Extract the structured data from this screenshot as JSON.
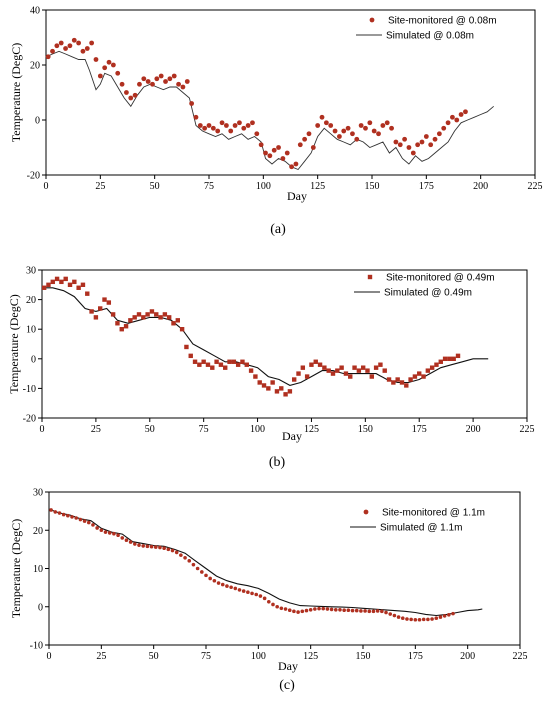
{
  "chart_data": [
    {
      "type": "scatter",
      "panel_label": "(a)",
      "xlabel": "Day",
      "ylabel": "Temperature (DegC)",
      "xlim": [
        0,
        225
      ],
      "ylim": [
        -20,
        40
      ],
      "xticks": [
        0,
        25,
        50,
        75,
        100,
        125,
        150,
        175,
        200,
        225
      ],
      "yticks": [
        -20,
        0,
        20,
        40
      ],
      "legend_position": "top-right",
      "colors": {
        "observed": "#b03020",
        "simulated": "#333333"
      },
      "series": [
        {
          "name": "Site-monitored @ 0.08m",
          "kind": "points",
          "x": [
            1,
            3,
            5,
            7,
            9,
            11,
            13,
            15,
            17,
            19,
            21,
            23,
            25,
            27,
            29,
            31,
            33,
            35,
            37,
            39,
            41,
            43,
            45,
            47,
            49,
            51,
            53,
            55,
            57,
            59,
            61,
            63,
            65,
            67,
            69,
            71,
            73,
            75,
            77,
            79,
            81,
            83,
            85,
            87,
            89,
            91,
            93,
            95,
            97,
            99,
            101,
            103,
            105,
            107,
            109,
            111,
            113,
            115,
            117,
            119,
            121,
            123,
            125,
            127,
            129,
            131,
            133,
            135,
            137,
            139,
            141,
            143,
            145,
            147,
            149,
            151,
            153,
            155,
            157,
            159,
            161,
            163,
            165,
            167,
            169,
            171,
            173,
            175,
            177,
            179,
            181,
            183,
            185,
            187,
            189,
            191,
            193
          ],
          "y": [
            23,
            25,
            27,
            28,
            26,
            27,
            29,
            28,
            25,
            26,
            28,
            22,
            16,
            19,
            21,
            20,
            17,
            13,
            10,
            8,
            9,
            13,
            15,
            14,
            13,
            15,
            16,
            14,
            15,
            16,
            13,
            12,
            14,
            6,
            1,
            -2,
            -3,
            -2,
            -3,
            -4,
            -1,
            -2,
            -4,
            -2,
            -1,
            -3,
            -2,
            -1,
            -5,
            -9,
            -12,
            -13,
            -11,
            -10,
            -14,
            -12,
            -17,
            -16,
            -9,
            -7,
            -5,
            -10,
            -2,
            1,
            -1,
            -2,
            -4,
            -6,
            -4,
            -3,
            -5,
            -7,
            -2,
            -3,
            -1,
            -4,
            -5,
            -2,
            -1,
            -3,
            -8,
            -9,
            -7,
            -10,
            -12,
            -9,
            -8,
            -6,
            -9,
            -7,
            -5,
            -3,
            -1,
            1,
            0,
            2,
            3
          ]
        },
        {
          "name": "Simulated @ 0.08m",
          "kind": "line",
          "x": [
            0,
            3,
            6,
            9,
            12,
            15,
            18,
            20,
            23,
            25,
            27,
            30,
            33,
            36,
            39,
            42,
            45,
            48,
            51,
            54,
            57,
            60,
            63,
            66,
            69,
            72,
            75,
            78,
            81,
            84,
            87,
            90,
            93,
            96,
            99,
            101,
            104,
            107,
            110,
            113,
            116,
            119,
            122,
            125,
            128,
            131,
            134,
            137,
            140,
            143,
            146,
            149,
            152,
            155,
            158,
            161,
            164,
            167,
            170,
            173,
            176,
            179,
            182,
            185,
            188,
            191,
            194,
            197,
            200,
            203,
            206
          ],
          "y": [
            23,
            24,
            25,
            24,
            23,
            22,
            22,
            18,
            11,
            13,
            17,
            16,
            12,
            8,
            5,
            9,
            12,
            13,
            12,
            11,
            12,
            12,
            10,
            8,
            -2,
            -4,
            -5,
            -6,
            -5,
            -7,
            -6,
            -5,
            -7,
            -6,
            -8,
            -14,
            -16,
            -14,
            -15,
            -17,
            -18,
            -15,
            -12,
            -6,
            -3,
            -5,
            -7,
            -8,
            -9,
            -7,
            -8,
            -10,
            -9,
            -8,
            -12,
            -10,
            -14,
            -16,
            -13,
            -15,
            -14,
            -12,
            -10,
            -8,
            -4,
            -1,
            0,
            1,
            2,
            3,
            5
          ]
        }
      ]
    },
    {
      "type": "scatter",
      "panel_label": "(b)",
      "xlabel": "Day",
      "ylabel": "Temperature (DegC)",
      "xlim": [
        0,
        225
      ],
      "ylim": [
        -20,
        30
      ],
      "xticks": [
        0,
        25,
        50,
        75,
        100,
        125,
        150,
        175,
        200,
        225
      ],
      "yticks": [
        -20,
        -10,
        0,
        10,
        20,
        30
      ],
      "legend_position": "top-right",
      "colors": {
        "observed": "#b03020",
        "simulated": "#111111"
      },
      "series": [
        {
          "name": "Site-monitored @ 0.49m",
          "kind": "points",
          "x": [
            1,
            3,
            5,
            7,
            9,
            11,
            13,
            15,
            17,
            19,
            21,
            23,
            25,
            27,
            29,
            31,
            33,
            35,
            37,
            39,
            41,
            43,
            45,
            47,
            49,
            51,
            53,
            55,
            57,
            59,
            61,
            63,
            65,
            67,
            69,
            71,
            73,
            75,
            77,
            79,
            81,
            83,
            85,
            87,
            89,
            91,
            93,
            95,
            97,
            99,
            101,
            103,
            105,
            107,
            109,
            111,
            113,
            115,
            117,
            119,
            121,
            123,
            125,
            127,
            129,
            131,
            133,
            135,
            137,
            139,
            141,
            143,
            145,
            147,
            149,
            151,
            153,
            155,
            157,
            159,
            161,
            163,
            165,
            167,
            169,
            171,
            173,
            175,
            177,
            179,
            181,
            183,
            185,
            187,
            189,
            191,
            193
          ],
          "y": [
            24,
            25,
            26,
            27,
            26,
            27,
            25,
            26,
            24,
            25,
            22,
            16,
            14,
            17,
            20,
            19,
            15,
            12,
            10,
            11,
            13,
            14,
            15,
            14,
            15,
            16,
            15,
            14,
            15,
            14,
            12,
            13,
            10,
            4,
            1,
            -1,
            -2,
            -1,
            -2,
            -3,
            -1,
            -2,
            -3,
            -1,
            -1,
            -2,
            -1,
            -2,
            -4,
            -6,
            -8,
            -9,
            -10,
            -8,
            -11,
            -10,
            -12,
            -11,
            -7,
            -5,
            -3,
            -6,
            -2,
            -1,
            -2,
            -3,
            -4,
            -5,
            -4,
            -3,
            -5,
            -6,
            -3,
            -4,
            -3,
            -4,
            -6,
            -3,
            -2,
            -4,
            -7,
            -8,
            -7,
            -8,
            -9,
            -7,
            -6,
            -5,
            -6,
            -4,
            -3,
            -2,
            -1,
            0,
            0,
            0,
            1
          ]
        },
        {
          "name": "Simulated @ 0.49m",
          "kind": "line",
          "x": [
            0,
            5,
            10,
            15,
            20,
            25,
            30,
            35,
            40,
            45,
            50,
            55,
            60,
            65,
            70,
            75,
            80,
            85,
            90,
            95,
            100,
            105,
            110,
            115,
            120,
            125,
            130,
            135,
            140,
            145,
            150,
            155,
            160,
            165,
            170,
            175,
            180,
            185,
            190,
            195,
            200,
            205,
            207
          ],
          "y": [
            24,
            24,
            23,
            21,
            17,
            16,
            17,
            13,
            12,
            13,
            14,
            14,
            13,
            10,
            5,
            3,
            1,
            -1,
            -1,
            -2,
            -3,
            -6,
            -7,
            -9,
            -8,
            -6,
            -4,
            -4,
            -5,
            -5,
            -5,
            -5,
            -7,
            -8,
            -8,
            -7,
            -5,
            -3,
            -2,
            -1,
            0,
            0,
            0
          ]
        }
      ]
    },
    {
      "type": "scatter",
      "panel_label": "(c)",
      "xlabel": "Day",
      "ylabel": "Temperature (DegC)",
      "xlim": [
        0,
        225
      ],
      "ylim": [
        -10,
        30
      ],
      "xticks": [
        0,
        25,
        50,
        75,
        100,
        125,
        150,
        175,
        200,
        225
      ],
      "yticks": [
        -10,
        0,
        10,
        20,
        30
      ],
      "legend_position": "top-right",
      "colors": {
        "observed": "#b03020",
        "simulated": "#111111"
      },
      "series": [
        {
          "name": "Site-monitored @ 1.1m",
          "kind": "points",
          "x": [
            1,
            3,
            5,
            7,
            9,
            11,
            13,
            15,
            17,
            19,
            21,
            23,
            25,
            27,
            29,
            31,
            33,
            35,
            37,
            39,
            41,
            43,
            45,
            47,
            49,
            51,
            53,
            55,
            57,
            59,
            61,
            63,
            65,
            67,
            69,
            71,
            73,
            75,
            77,
            79,
            81,
            83,
            85,
            87,
            89,
            91,
            93,
            95,
            97,
            99,
            101,
            103,
            105,
            107,
            109,
            111,
            113,
            115,
            117,
            119,
            121,
            123,
            125,
            127,
            129,
            131,
            133,
            135,
            137,
            139,
            141,
            143,
            145,
            147,
            149,
            151,
            153,
            155,
            157,
            159,
            161,
            163,
            165,
            167,
            169,
            171,
            173,
            175,
            177,
            179,
            181,
            183,
            185,
            187,
            189,
            191,
            193
          ],
          "y": [
            25.3,
            24.8,
            24.5,
            24.1,
            23.8,
            23.5,
            23.2,
            22.8,
            22.4,
            22,
            21.4,
            20.6,
            20,
            19.5,
            19.3,
            19.1,
            18.7,
            18,
            17.4,
            16.9,
            16.4,
            16.1,
            15.9,
            15.8,
            15.7,
            15.6,
            15.5,
            15.3,
            15,
            14.7,
            14.2,
            13.5,
            12.8,
            12,
            11,
            10,
            9.1,
            8.2,
            7.4,
            6.8,
            6.2,
            5.8,
            5.4,
            5.1,
            4.8,
            4.4,
            4.1,
            3.8,
            3.5,
            3.2,
            2.8,
            2.2,
            1.3,
            0.6,
            0,
            -0.4,
            -0.6,
            -0.9,
            -1.2,
            -1.4,
            -1.2,
            -1,
            -0.8,
            -0.6,
            -0.5,
            -0.5,
            -0.6,
            -0.7,
            -0.8,
            -0.8,
            -0.9,
            -0.9,
            -1,
            -1,
            -1.1,
            -1.1,
            -1.2,
            -1.2,
            -1.1,
            -1.2,
            -1.5,
            -1.9,
            -2.3,
            -2.7,
            -3,
            -3.2,
            -3.3,
            -3.4,
            -3.4,
            -3.3,
            -3.3,
            -3.2,
            -3,
            -2.7,
            -2.4,
            -2.1,
            -1.8
          ]
        },
        {
          "name": "Simulated @ 1.1m",
          "kind": "line",
          "x": [
            0,
            5,
            10,
            15,
            20,
            25,
            30,
            35,
            40,
            45,
            50,
            55,
            60,
            65,
            70,
            75,
            80,
            85,
            90,
            95,
            100,
            105,
            110,
            115,
            120,
            125,
            130,
            135,
            140,
            145,
            150,
            155,
            160,
            165,
            170,
            175,
            180,
            185,
            190,
            195,
            200,
            205,
            207
          ],
          "y": [
            25.5,
            24.5,
            24,
            23,
            22.5,
            20.5,
            19.5,
            19,
            17,
            16.5,
            16,
            15.8,
            15,
            14,
            12,
            10,
            8,
            6.8,
            6,
            5.5,
            4.8,
            3.5,
            2,
            1,
            0.3,
            0.2,
            0.1,
            0,
            -0.1,
            -0.2,
            -0.4,
            -0.6,
            -0.8,
            -1,
            -1.2,
            -1.5,
            -2,
            -2.3,
            -2,
            -1.5,
            -1,
            -0.8,
            -0.6
          ]
        }
      ]
    }
  ]
}
